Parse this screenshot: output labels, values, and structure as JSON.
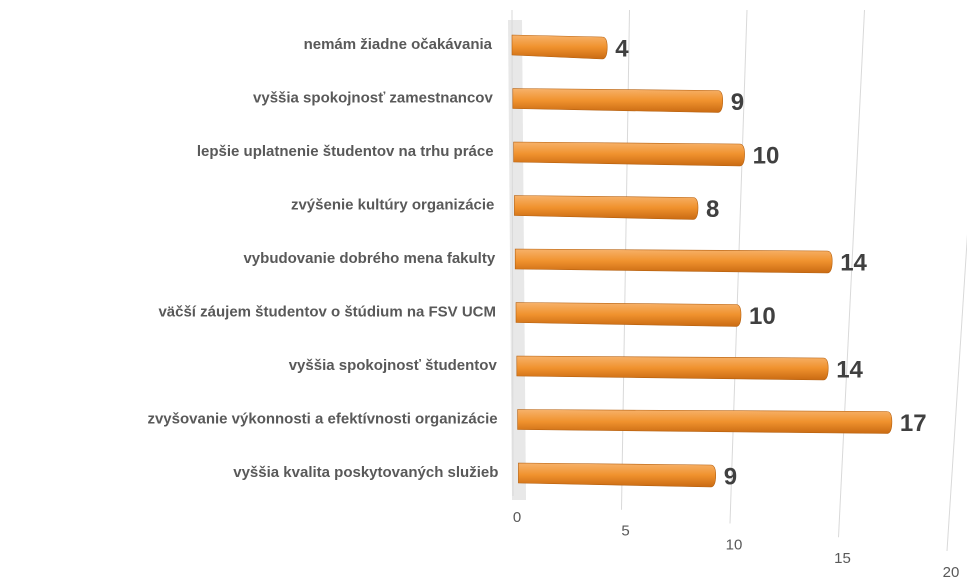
{
  "chart_data": {
    "type": "bar",
    "orientation": "horizontal",
    "categories": [
      "nemám žiadne očakávania",
      "vyššia spokojnosť zamestnancov",
      "lepšie uplatnenie študentov na trhu práce",
      "zvýšenie kultúry organizácie",
      "vybudovanie dobrého mena fakulty",
      "väčší záujem študentov o štúdium na FSV UCM",
      "vyššia spokojnosť  študentov",
      "zvyšovanie výkonnosti a efektívnosti organizácie",
      "vyššia kvalita poskytovaných služieb"
    ],
    "values": [
      4,
      9,
      10,
      8,
      14,
      10,
      14,
      17,
      9
    ],
    "color": "#f0922e",
    "xlim": [
      0,
      20
    ],
    "xticks": [
      0,
      5,
      10,
      15,
      20
    ],
    "grid": true
  }
}
